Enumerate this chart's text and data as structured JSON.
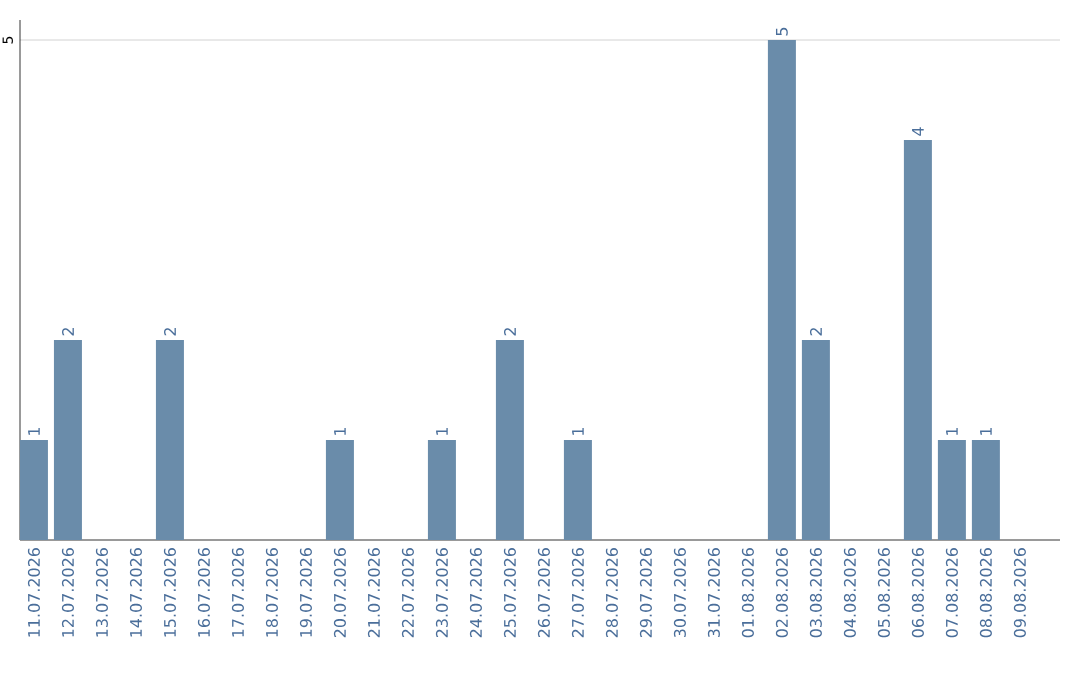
{
  "chart_data": {
    "type": "bar",
    "categories": [
      "11.07.2026",
      "12.07.2026",
      "13.07.2026",
      "14.07.2026",
      "15.07.2026",
      "16.07.2026",
      "17.07.2026",
      "18.07.2026",
      "19.07.2026",
      "20.07.2026",
      "21.07.2026",
      "22.07.2026",
      "23.07.2026",
      "24.07.2026",
      "25.07.2026",
      "26.07.2026",
      "27.07.2026",
      "28.07.2026",
      "29.07.2026",
      "30.07.2026",
      "31.07.2026",
      "01.08.2026",
      "02.08.2026",
      "03.08.2026",
      "04.08.2026",
      "05.08.2026",
      "06.08.2026",
      "07.08.2026",
      "08.08.2026",
      "09.08.2026"
    ],
    "values": [
      1,
      2,
      0,
      0,
      2,
      0,
      0,
      0,
      0,
      1,
      0,
      0,
      1,
      0,
      2,
      0,
      1,
      0,
      0,
      0,
      0,
      0,
      5,
      2,
      0,
      0,
      4,
      1,
      1,
      0
    ],
    "value_labels": [
      "1",
      "2",
      null,
      null,
      "2",
      null,
      null,
      null,
      null,
      "1",
      null,
      null,
      "1",
      null,
      "2",
      null,
      "1",
      null,
      null,
      null,
      null,
      null,
      "5",
      "2",
      null,
      null,
      "4",
      "1",
      "1",
      null
    ],
    "color": "#6a8caa",
    "ylim": [
      0,
      5.2
    ],
    "yticks": [
      5
    ],
    "grid": "y"
  }
}
